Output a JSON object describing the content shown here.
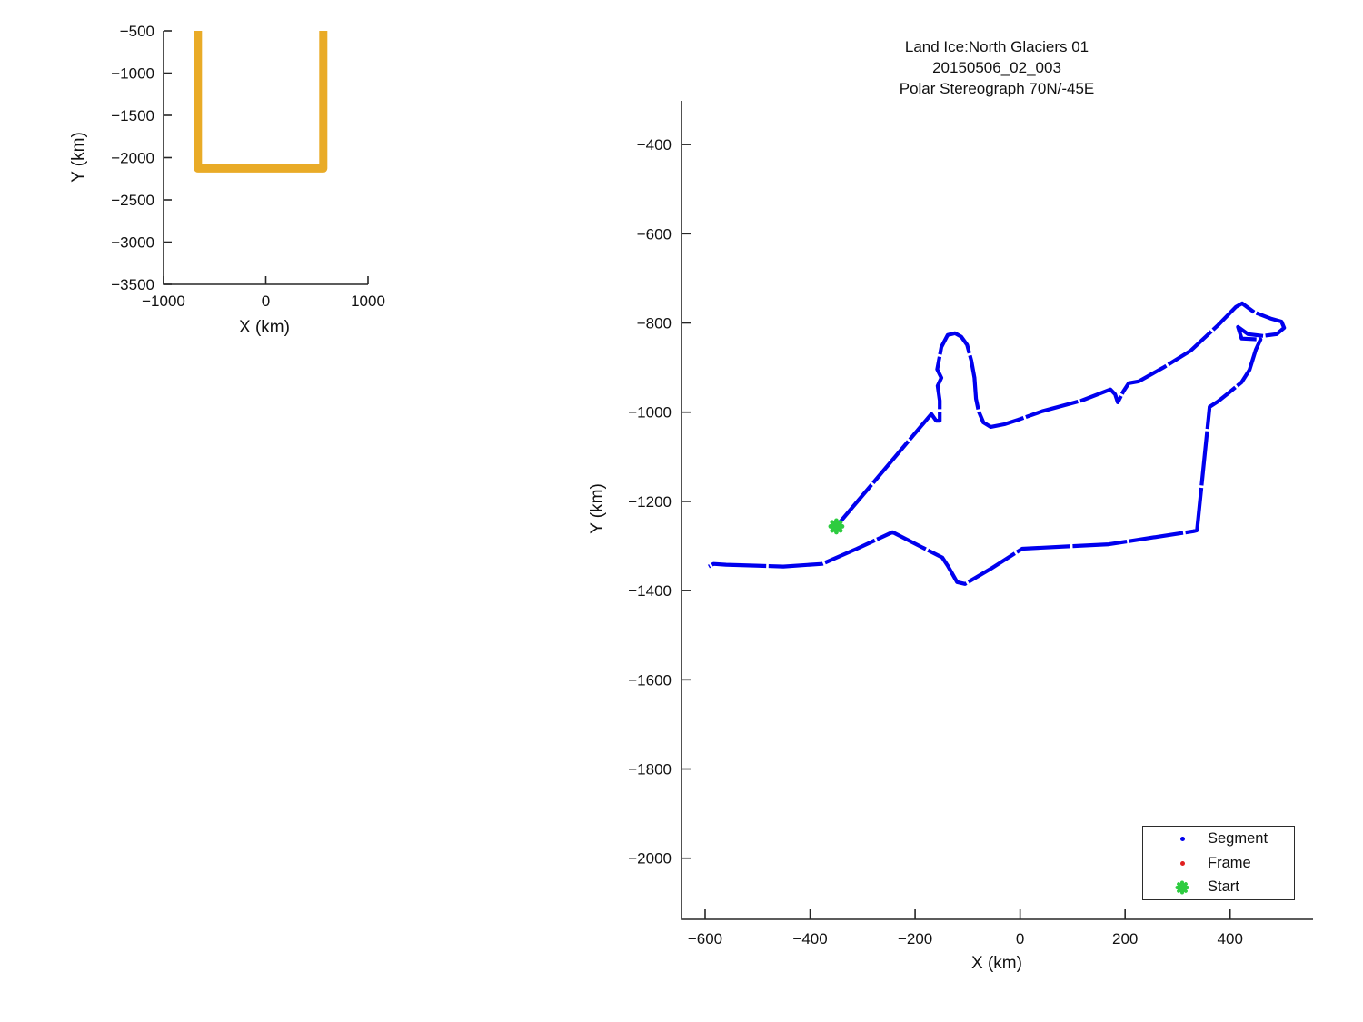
{
  "figure": {
    "background": "#ffffff",
    "axis_color": "#262626",
    "text_color": "#111111"
  },
  "chart_data": [
    {
      "id": "overview",
      "type": "line",
      "xlabel": "X (km)",
      "ylabel": "Y (km)",
      "xlim": [
        -1000,
        1000
      ],
      "ylim": [
        -3500,
        -500
      ],
      "xticks": [
        -1000,
        0,
        1000
      ],
      "yticks": [
        -500,
        -1000,
        -1500,
        -2000,
        -2500,
        -3000,
        -3500
      ],
      "grid": false,
      "series": [
        {
          "name": "swath-outline",
          "color": "#e9ab27",
          "linewidth": 9,
          "points": [
            [
              -664,
              -500
            ],
            [
              -664,
              -2128
            ],
            [
              563,
              -2128
            ],
            [
              563,
              -500
            ]
          ]
        }
      ]
    },
    {
      "id": "trajectory",
      "type": "line",
      "title_lines": [
        "Land Ice:North Glaciers 01",
        "20150506_02_003",
        "Polar Stereograph 70N/-45E"
      ],
      "xlabel": "X (km)",
      "ylabel": "Y (km)",
      "xlim": [
        -645,
        558
      ],
      "ylim": [
        -2137,
        -302
      ],
      "xticks": [
        -600,
        -400,
        -200,
        0,
        200,
        400
      ],
      "yticks": [
        -400,
        -600,
        -800,
        -1000,
        -1200,
        -1400,
        -1600,
        -1800,
        -2000
      ],
      "grid": false,
      "legend_position": "lower right",
      "legend": [
        {
          "label": "Segment",
          "marker": "dot",
          "color": "#0000ee"
        },
        {
          "label": "Frame",
          "marker": "dot",
          "color": "#e02020"
        },
        {
          "label": "Start",
          "marker": "burst",
          "color": "#2ecc40"
        }
      ],
      "start_marker": {
        "x": -350,
        "y": -1256,
        "color": "#2ecc40"
      },
      "series": [
        {
          "name": "Segment",
          "color": "#0000ee",
          "linewidth": 4.2,
          "dashed_gaps": true,
          "points": [
            [
              -350,
              -1256
            ],
            [
              -172,
              -1008
            ],
            [
              -169,
              -1004
            ],
            [
              -160,
              -1019
            ],
            [
              -153,
              -1019
            ],
            [
              -153,
              -974
            ],
            [
              -157,
              -941
            ],
            [
              -150,
              -923
            ],
            [
              -158,
              -904
            ],
            [
              -150,
              -854
            ],
            [
              -138,
              -827
            ],
            [
              -124,
              -823
            ],
            [
              -112,
              -831
            ],
            [
              -101,
              -849
            ],
            [
              -93,
              -884
            ],
            [
              -87,
              -923
            ],
            [
              -84,
              -970
            ],
            [
              -79,
              -998
            ],
            [
              -70,
              -1023
            ],
            [
              -56,
              -1033
            ],
            [
              -30,
              -1027
            ],
            [
              -4,
              -1017
            ],
            [
              42,
              -998
            ],
            [
              117,
              -974
            ],
            [
              172,
              -949
            ],
            [
              181,
              -960
            ],
            [
              186,
              -978
            ],
            [
              197,
              -953
            ],
            [
              207,
              -935
            ],
            [
              226,
              -931
            ],
            [
              273,
              -900
            ],
            [
              325,
              -862
            ],
            [
              377,
              -805
            ],
            [
              411,
              -764
            ],
            [
              423,
              -756
            ],
            [
              446,
              -776
            ],
            [
              477,
              -790
            ],
            [
              498,
              -797
            ],
            [
              503,
              -811
            ],
            [
              489,
              -825
            ],
            [
              463,
              -829
            ],
            [
              434,
              -825
            ],
            [
              415,
              -809
            ],
            [
              422,
              -835
            ],
            [
              458,
              -837
            ],
            [
              449,
              -860
            ],
            [
              437,
              -905
            ],
            [
              422,
              -933
            ],
            [
              397,
              -957
            ],
            [
              377,
              -976
            ],
            [
              361,
              -988
            ],
            [
              337,
              -1265
            ],
            [
              330,
              -1267
            ],
            [
              169,
              -1296
            ],
            [
              4,
              -1306
            ],
            [
              -56,
              -1351
            ],
            [
              -105,
              -1385
            ],
            [
              -120,
              -1381
            ],
            [
              -138,
              -1344
            ],
            [
              -148,
              -1326
            ],
            [
              -243,
              -1269
            ],
            [
              -311,
              -1306
            ],
            [
              -377,
              -1340
            ],
            [
              -451,
              -1346
            ],
            [
              -503,
              -1344
            ],
            [
              -560,
              -1342
            ],
            [
              -584,
              -1340
            ],
            [
              -593,
              -1346
            ]
          ]
        }
      ]
    }
  ]
}
